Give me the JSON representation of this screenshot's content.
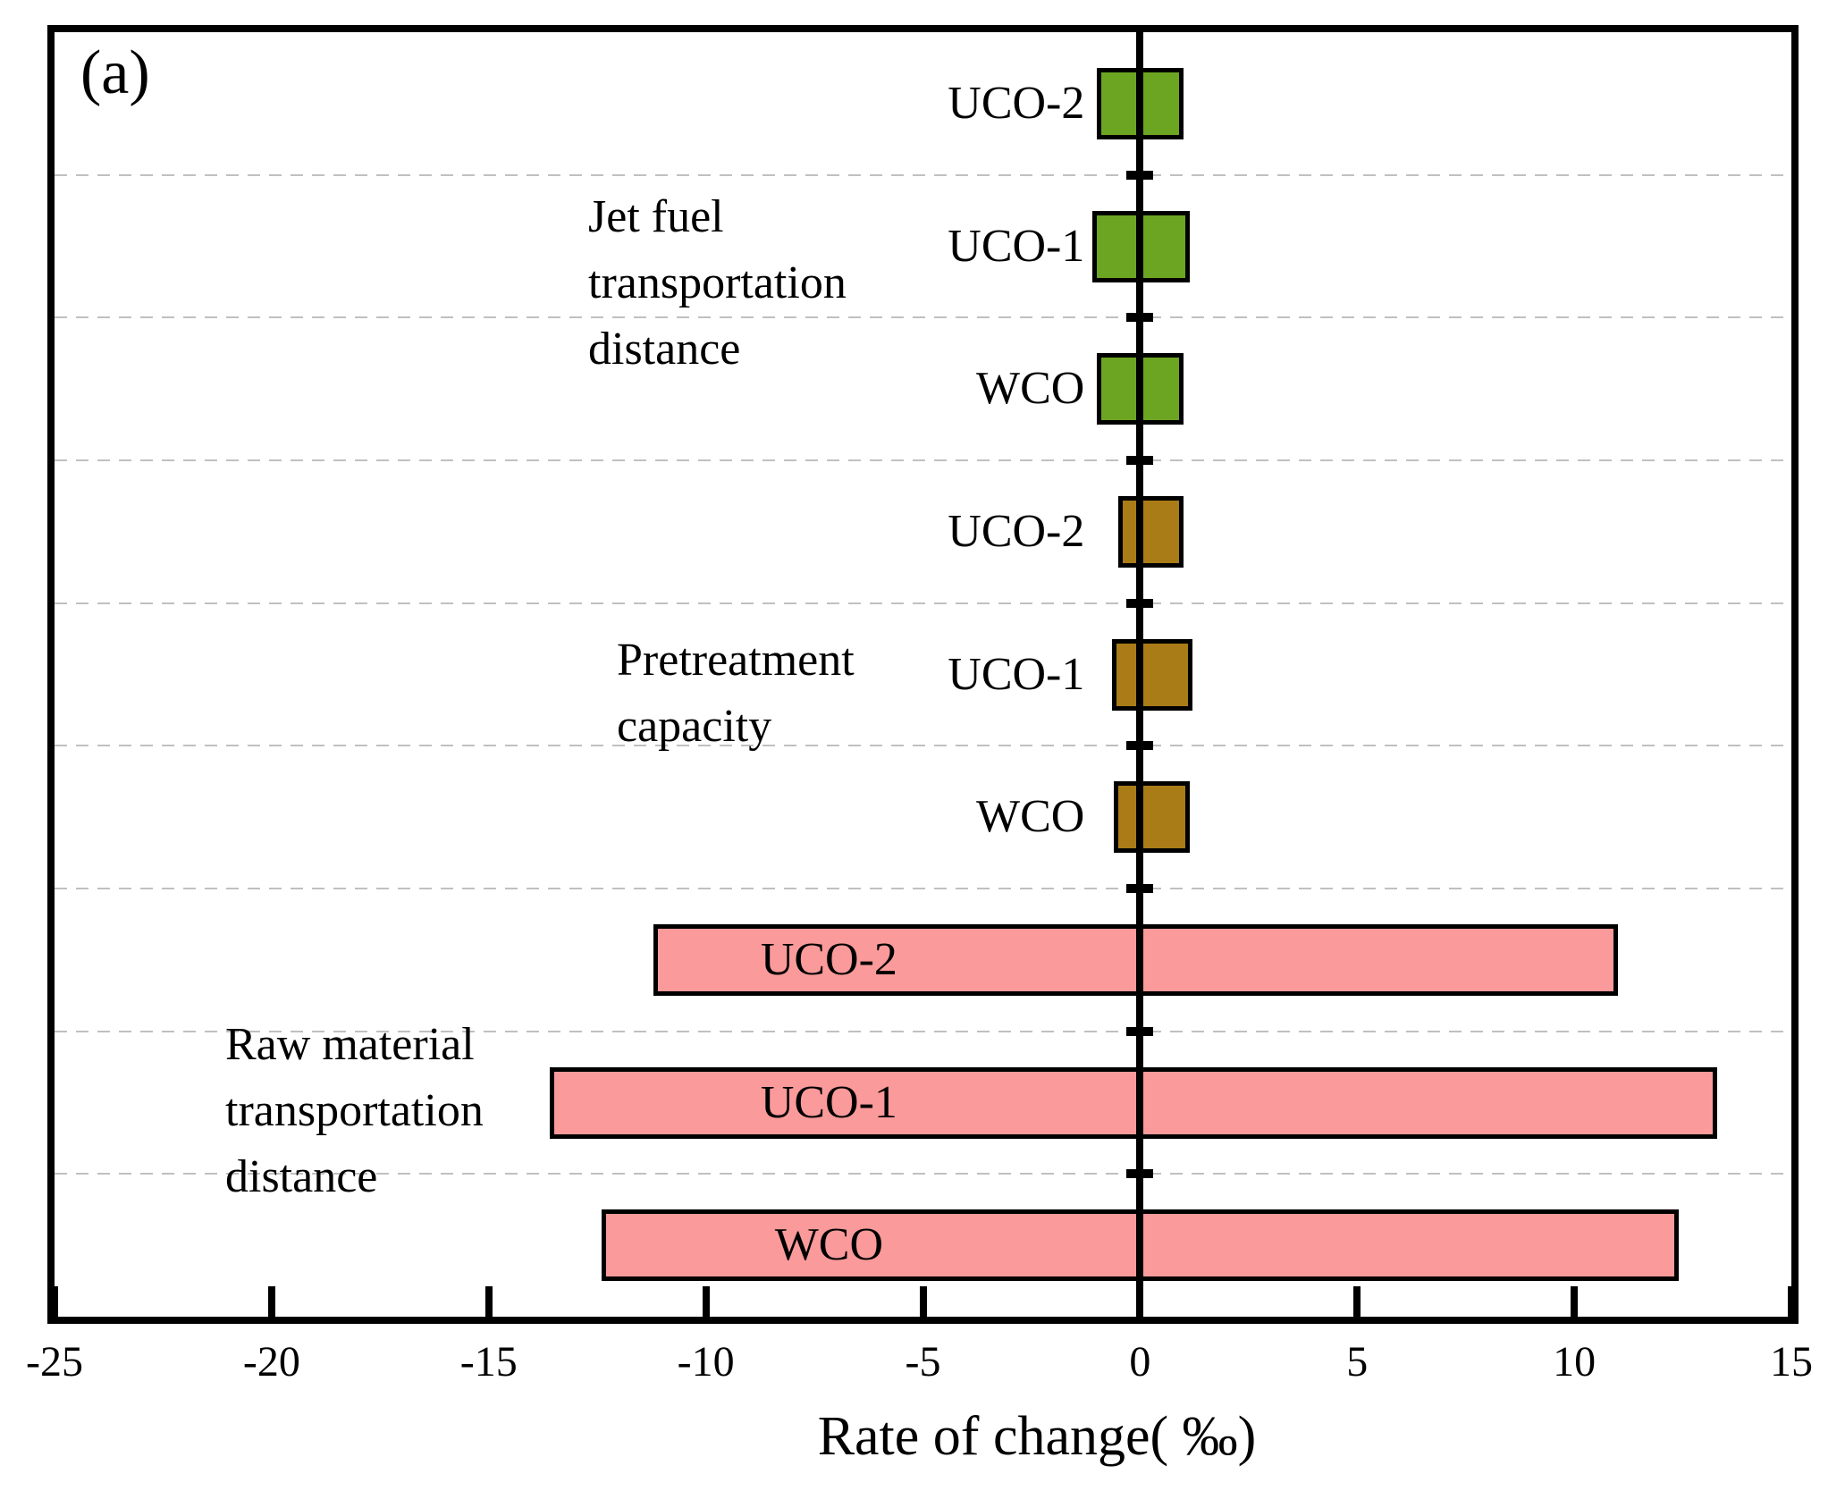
{
  "figure": {
    "panel_label": "(a)",
    "xaxis": {
      "title": "Rate of change( ‰)",
      "min": -25,
      "max": 15,
      "tick_step": 5,
      "ticks": [
        -25,
        -20,
        -15,
        -10,
        -5,
        0,
        5,
        10,
        15
      ],
      "tick_labels": [
        "-25",
        "-20",
        "-15",
        "-10",
        "-5",
        "0",
        "5",
        "10",
        "15"
      ]
    }
  },
  "colors": {
    "green": "#6CA522",
    "brown": "#A97C17",
    "pink": "#FA9A9A",
    "grid": "#C0C0C0",
    "axis": "#000000",
    "background": "#FFFFFF"
  },
  "chart_data": {
    "type": "bar",
    "subtype": "horizontal-range-tornado",
    "title": "",
    "xlabel": "Rate of change( ‰)",
    "ylabel": "",
    "xlim": [
      -25,
      15
    ],
    "grid": "horizontal dashed lines between category rows",
    "legend": "none",
    "zero_reference_line": 0,
    "groups": [
      {
        "name": "Jet fuel transportation distance",
        "label_lines": [
          "Jet fuel",
          "transportation",
          "distance"
        ],
        "color_key": "green",
        "color": "#6CA522",
        "bar_label_position": "left-of-bar",
        "bars": [
          {
            "label": "UCO-2",
            "from": -1.0,
            "to": 1.0
          },
          {
            "label": "UCO-1",
            "from": -1.1,
            "to": 1.15
          },
          {
            "label": "WCO",
            "from": -1.0,
            "to": 1.0
          }
        ]
      },
      {
        "name": "Pretreatment capacity",
        "label_lines": [
          "Pretreatment",
          "capacity"
        ],
        "color_key": "brown",
        "color": "#A97C17",
        "bar_label_position": "left-of-bar",
        "bars": [
          {
            "label": "UCO-2",
            "from": -0.5,
            "to": 1.0
          },
          {
            "label": "UCO-1",
            "from": -0.65,
            "to": 1.2
          },
          {
            "label": "WCO",
            "from": -0.6,
            "to": 1.15
          }
        ]
      },
      {
        "name": "Raw material transportation distance",
        "label_lines": [
          "Raw material",
          "transportation",
          "distance"
        ],
        "color_key": "pink",
        "color": "#FA9A9A",
        "bar_label_position": "inside-bar",
        "bars": [
          {
            "label": "UCO-2",
            "from": -11.2,
            "to": 11.0
          },
          {
            "label": "UCO-1",
            "from": -13.6,
            "to": 13.3
          },
          {
            "label": "WCO",
            "from": -12.4,
            "to": 12.4
          }
        ]
      }
    ]
  }
}
